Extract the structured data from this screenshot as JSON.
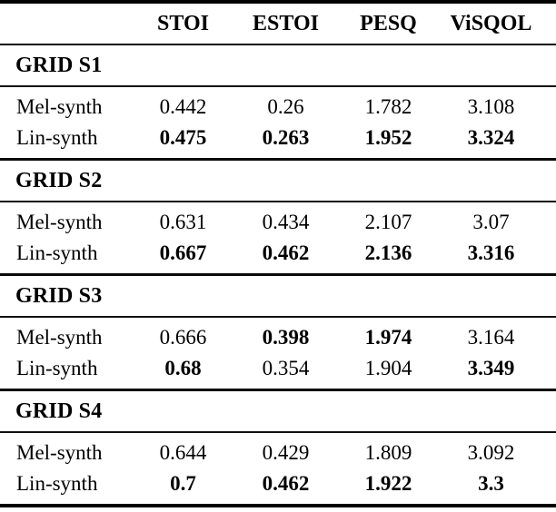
{
  "table": {
    "columns": [
      "STOI",
      "ESTOI",
      "PESQ",
      "ViSQOL"
    ],
    "groups": [
      {
        "title": "GRID S1",
        "rows": [
          {
            "label": "Mel-synth",
            "values": [
              "0.442",
              "0.26",
              "1.782",
              "3.108"
            ],
            "bold": [
              false,
              false,
              false,
              false
            ]
          },
          {
            "label": "Lin-synth",
            "values": [
              "0.475",
              "0.263",
              "1.952",
              "3.324"
            ],
            "bold": [
              true,
              true,
              true,
              true
            ]
          }
        ]
      },
      {
        "title": "GRID S2",
        "rows": [
          {
            "label": "Mel-synth",
            "values": [
              "0.631",
              "0.434",
              "2.107",
              "3.07"
            ],
            "bold": [
              false,
              false,
              false,
              false
            ]
          },
          {
            "label": "Lin-synth",
            "values": [
              "0.667",
              "0.462",
              "2.136",
              "3.316"
            ],
            "bold": [
              true,
              true,
              true,
              true
            ]
          }
        ]
      },
      {
        "title": "GRID S3",
        "rows": [
          {
            "label": "Mel-synth",
            "values": [
              "0.666",
              "0.398",
              "1.974",
              "3.164"
            ],
            "bold": [
              false,
              true,
              true,
              false
            ]
          },
          {
            "label": "Lin-synth",
            "values": [
              "0.68",
              "0.354",
              "1.904",
              "3.349"
            ],
            "bold": [
              true,
              false,
              false,
              true
            ]
          }
        ]
      },
      {
        "title": "GRID S4",
        "rows": [
          {
            "label": "Mel-synth",
            "values": [
              "0.644",
              "0.429",
              "1.809",
              "3.092"
            ],
            "bold": [
              false,
              false,
              false,
              false
            ]
          },
          {
            "label": "Lin-synth",
            "values": [
              "0.7",
              "0.462",
              "1.922",
              "3.3"
            ],
            "bold": [
              true,
              true,
              true,
              true
            ]
          }
        ]
      }
    ],
    "colors": {
      "text": "#000000",
      "rule": "#000000",
      "background": "#ffffff"
    }
  }
}
